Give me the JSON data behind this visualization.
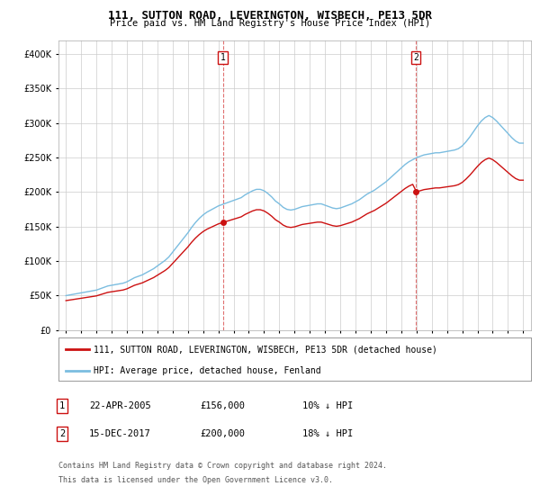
{
  "title": "111, SUTTON ROAD, LEVERINGTON, WISBECH, PE13 5DR",
  "subtitle": "Price paid vs. HM Land Registry's House Price Index (HPI)",
  "legend_line1": "111, SUTTON ROAD, LEVERINGTON, WISBECH, PE13 5DR (detached house)",
  "legend_line2": "HPI: Average price, detached house, Fenland",
  "footnote_line1": "Contains HM Land Registry data © Crown copyright and database right 2024.",
  "footnote_line2": "This data is licensed under the Open Government Licence v3.0.",
  "purchase1_label": "1",
  "purchase1_date": "22-APR-2005",
  "purchase1_price": "£156,000",
  "purchase1_hpi": "10% ↓ HPI",
  "purchase2_label": "2",
  "purchase2_date": "15-DEC-2017",
  "purchase2_price": "£200,000",
  "purchase2_hpi": "18% ↓ HPI",
  "sale1_year": 2005.3,
  "sale2_year": 2017.95,
  "sale1_price": 156000,
  "sale2_price": 200000,
  "ylim": [
    0,
    420000
  ],
  "yticks": [
    0,
    50000,
    100000,
    150000,
    200000,
    250000,
    300000,
    350000,
    400000
  ],
  "xlim_min": 1994.5,
  "xlim_max": 2025.5,
  "hpi_color": "#7bbde0",
  "price_color": "#cc1111",
  "vline_color": "#cc1111",
  "background_color": "#ffffff",
  "grid_color": "#cccccc",
  "years_hpi": [
    1995.0,
    1995.25,
    1995.5,
    1995.75,
    1996.0,
    1996.25,
    1996.5,
    1996.75,
    1997.0,
    1997.25,
    1997.5,
    1997.75,
    1998.0,
    1998.25,
    1998.5,
    1998.75,
    1999.0,
    1999.25,
    1999.5,
    1999.75,
    2000.0,
    2000.25,
    2000.5,
    2000.75,
    2001.0,
    2001.25,
    2001.5,
    2001.75,
    2002.0,
    2002.25,
    2002.5,
    2002.75,
    2003.0,
    2003.25,
    2003.5,
    2003.75,
    2004.0,
    2004.25,
    2004.5,
    2004.75,
    2005.0,
    2005.25,
    2005.5,
    2005.75,
    2006.0,
    2006.25,
    2006.5,
    2006.75,
    2007.0,
    2007.25,
    2007.5,
    2007.75,
    2008.0,
    2008.25,
    2008.5,
    2008.75,
    2009.0,
    2009.25,
    2009.5,
    2009.75,
    2010.0,
    2010.25,
    2010.5,
    2010.75,
    2011.0,
    2011.25,
    2011.5,
    2011.75,
    2012.0,
    2012.25,
    2012.5,
    2012.75,
    2013.0,
    2013.25,
    2013.5,
    2013.75,
    2014.0,
    2014.25,
    2014.5,
    2014.75,
    2015.0,
    2015.25,
    2015.5,
    2015.75,
    2016.0,
    2016.25,
    2016.5,
    2016.75,
    2017.0,
    2017.25,
    2017.5,
    2017.75,
    2018.0,
    2018.25,
    2018.5,
    2018.75,
    2019.0,
    2019.25,
    2019.5,
    2019.75,
    2020.0,
    2020.25,
    2020.5,
    2020.75,
    2021.0,
    2021.25,
    2021.5,
    2021.75,
    2022.0,
    2022.25,
    2022.5,
    2022.75,
    2023.0,
    2023.25,
    2023.5,
    2023.75,
    2024.0,
    2024.25,
    2024.5,
    2024.75,
    2025.0
  ],
  "hpi_values": [
    50000,
    51000,
    52000,
    53000,
    54000,
    55000,
    56000,
    57000,
    58000,
    60000,
    62000,
    64000,
    65000,
    66000,
    67000,
    68000,
    70000,
    73000,
    76000,
    78000,
    80000,
    83000,
    86000,
    89000,
    93000,
    97000,
    101000,
    106000,
    113000,
    120000,
    127000,
    134000,
    141000,
    149000,
    156000,
    162000,
    167000,
    171000,
    174000,
    177000,
    180000,
    182000,
    184000,
    186000,
    188000,
    190000,
    192000,
    196000,
    199000,
    202000,
    204000,
    204000,
    202000,
    198000,
    193000,
    187000,
    183000,
    178000,
    175000,
    174000,
    175000,
    177000,
    179000,
    180000,
    181000,
    182000,
    183000,
    183000,
    181000,
    179000,
    177000,
    176000,
    177000,
    179000,
    181000,
    183000,
    186000,
    189000,
    193000,
    197000,
    200000,
    203000,
    207000,
    211000,
    215000,
    220000,
    225000,
    230000,
    235000,
    240000,
    244000,
    247000,
    250000,
    252000,
    254000,
    255000,
    256000,
    257000,
    257000,
    258000,
    259000,
    260000,
    261000,
    263000,
    267000,
    273000,
    280000,
    288000,
    296000,
    303000,
    308000,
    311000,
    308000,
    303000,
    297000,
    291000,
    285000,
    279000,
    274000,
    271000,
    271000
  ]
}
